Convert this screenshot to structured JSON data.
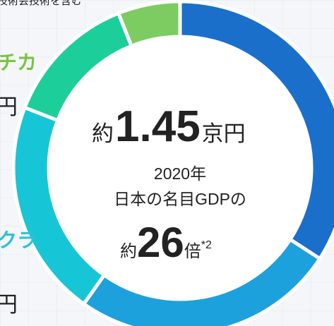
{
  "chart_data": {
    "type": "donut",
    "categories": [
      null,
      null,
      null,
      null,
      null
    ],
    "values": [
      34,
      25.5,
      21,
      13,
      6
    ],
    "colors": [
      "#1a6fcb",
      "#1da1dc",
      "#17c6d6",
      "#1ccf9a",
      "#7dcc62"
    ],
    "center_text": {
      "prefix": "約",
      "amount": "1.45",
      "unit": "京円",
      "line1": "2020年",
      "line2": "日本の名目GDPの",
      "ratio_prefix": "約",
      "ratio": "26",
      "ratio_unit": "倍",
      "note": "*2"
    },
    "annotations": [
      {
        "text": "技術会技術を含む",
        "color": "#222222"
      },
      {
        "text": "チカ",
        "color": "#7cc443"
      },
      {
        "text": "円",
        "color": "#222222"
      },
      {
        "text": "クラ",
        "color": "#2bc3d6"
      },
      {
        "text": "円",
        "color": "#222222"
      }
    ]
  }
}
